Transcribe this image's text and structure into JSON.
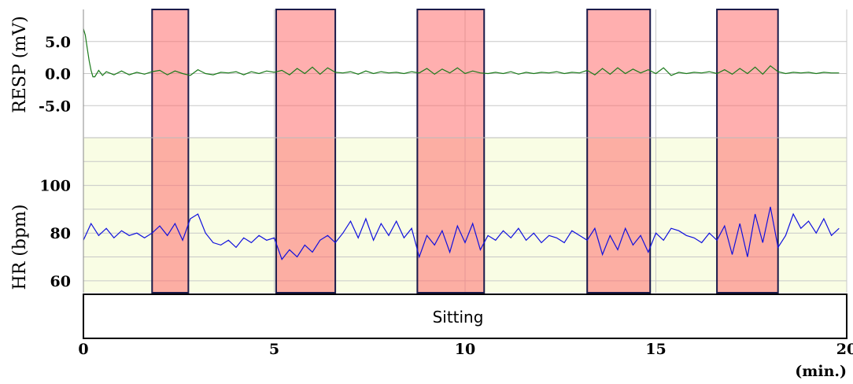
{
  "chart_data": {
    "type": "line",
    "x_axis": {
      "label": "(min.)",
      "range": [
        0,
        20
      ],
      "ticks": [
        0,
        5,
        10,
        15,
        20
      ]
    },
    "stimulus_intervals": [
      [
        1.8,
        2.75
      ],
      [
        5.05,
        6.6
      ],
      [
        8.75,
        10.5
      ],
      [
        13.2,
        14.85
      ],
      [
        16.6,
        18.2
      ]
    ],
    "activity_label": "Sitting",
    "panels": [
      {
        "id": "resp",
        "ylabel": "RESP (mV)",
        "yrange": [
          -10,
          10
        ],
        "ticks": [
          {
            "value": 5,
            "label": "5.0"
          },
          {
            "value": 0,
            "label": "0.0"
          },
          {
            "value": -5,
            "label": "-5.0"
          }
        ],
        "background": "#ffffff",
        "series": [
          {
            "color": "#1a7a1a",
            "x": [
              0,
              0.05,
              0.1,
              0.15,
              0.2,
              0.25,
              0.3,
              0.4,
              0.5,
              0.6,
              0.8,
              1.0,
              1.2,
              1.4,
              1.6,
              1.8,
              2.0,
              2.2,
              2.4,
              2.6,
              2.8,
              3.0,
              3.2,
              3.4,
              3.6,
              3.8,
              4.0,
              4.2,
              4.4,
              4.6,
              4.8,
              5.0,
              5.2,
              5.4,
              5.6,
              5.8,
              6.0,
              6.2,
              6.4,
              6.6,
              6.8,
              7.0,
              7.2,
              7.4,
              7.6,
              7.8,
              8.0,
              8.2,
              8.4,
              8.6,
              8.8,
              9.0,
              9.2,
              9.4,
              9.6,
              9.8,
              10.0,
              10.2,
              10.4,
              10.6,
              10.8,
              11.0,
              11.2,
              11.4,
              11.6,
              11.8,
              12.0,
              12.2,
              12.4,
              12.6,
              12.8,
              13.0,
              13.2,
              13.4,
              13.6,
              13.8,
              14.0,
              14.2,
              14.4,
              14.6,
              14.8,
              15.0,
              15.2,
              15.4,
              15.6,
              15.8,
              16.0,
              16.2,
              16.4,
              16.6,
              16.8,
              17.0,
              17.2,
              17.4,
              17.6,
              17.8,
              18.0,
              18.2,
              18.4,
              18.6,
              18.8,
              19.0,
              19.2,
              19.4,
              19.6,
              19.8
            ],
            "y": [
              7.0,
              6.0,
              4.0,
              2.0,
              0.5,
              -0.5,
              -0.5,
              0.5,
              -0.3,
              0.3,
              -0.2,
              0.4,
              -0.2,
              0.2,
              -0.1,
              0.3,
              0.5,
              -0.2,
              0.4,
              0.0,
              -0.3,
              0.6,
              0.0,
              -0.2,
              0.2,
              0.1,
              0.3,
              -0.2,
              0.3,
              0.0,
              0.4,
              0.2,
              0.5,
              -0.2,
              0.8,
              0.0,
              1.0,
              -0.1,
              0.9,
              0.2,
              0.1,
              0.3,
              -0.1,
              0.4,
              0.0,
              0.3,
              0.1,
              0.2,
              0.0,
              0.3,
              0.1,
              0.8,
              -0.1,
              0.7,
              0.1,
              0.9,
              0.0,
              0.4,
              0.1,
              0.0,
              0.2,
              0.0,
              0.3,
              -0.1,
              0.2,
              0.0,
              0.2,
              0.1,
              0.3,
              0.0,
              0.2,
              0.1,
              0.5,
              -0.2,
              0.8,
              -0.1,
              0.9,
              0.0,
              0.7,
              0.1,
              0.6,
              0.0,
              0.9,
              -0.3,
              0.2,
              0.0,
              0.2,
              0.1,
              0.3,
              0.0,
              0.6,
              -0.1,
              0.8,
              0.0,
              1.0,
              -0.1,
              1.2,
              0.3,
              0.0,
              0.2,
              0.1,
              0.2,
              0.0,
              0.2,
              0.1,
              0.1
            ]
          }
        ]
      },
      {
        "id": "hr",
        "ylabel": "HR (bpm)",
        "yrange": [
          55,
          120
        ],
        "ticks": [
          {
            "value": 100,
            "label": "100"
          },
          {
            "value": 80,
            "label": "80"
          },
          {
            "value": 60,
            "label": "60"
          }
        ],
        "background": "#f9fde4",
        "series": [
          {
            "color": "#1010dd",
            "x": [
              0,
              0.2,
              0.4,
              0.6,
              0.8,
              1.0,
              1.2,
              1.4,
              1.6,
              1.8,
              2.0,
              2.2,
              2.4,
              2.6,
              2.8,
              3.0,
              3.2,
              3.4,
              3.6,
              3.8,
              4.0,
              4.2,
              4.4,
              4.6,
              4.8,
              5.0,
              5.2,
              5.4,
              5.6,
              5.8,
              6.0,
              6.2,
              6.4,
              6.6,
              6.8,
              7.0,
              7.2,
              7.4,
              7.6,
              7.8,
              8.0,
              8.2,
              8.4,
              8.6,
              8.8,
              9.0,
              9.2,
              9.4,
              9.6,
              9.8,
              10.0,
              10.2,
              10.4,
              10.6,
              10.8,
              11.0,
              11.2,
              11.4,
              11.6,
              11.8,
              12.0,
              12.2,
              12.4,
              12.6,
              12.8,
              13.0,
              13.2,
              13.4,
              13.6,
              13.8,
              14.0,
              14.2,
              14.4,
              14.6,
              14.8,
              15.0,
              15.2,
              15.4,
              15.6,
              15.8,
              16.0,
              16.2,
              16.4,
              16.6,
              16.8,
              17.0,
              17.2,
              17.4,
              17.6,
              17.8,
              18.0,
              18.2,
              18.4,
              18.6,
              18.8,
              19.0,
              19.2,
              19.4,
              19.6,
              19.8
            ],
            "y": [
              77,
              84,
              79,
              82,
              78,
              81,
              79,
              80,
              78,
              80,
              83,
              79,
              84,
              77,
              86,
              88,
              80,
              76,
              75,
              77,
              74,
              78,
              76,
              79,
              77,
              78,
              69,
              73,
              70,
              75,
              72,
              77,
              79,
              76,
              80,
              85,
              78,
              86,
              77,
              84,
              79,
              85,
              78,
              82,
              70,
              79,
              75,
              81,
              72,
              83,
              76,
              84,
              73,
              79,
              77,
              81,
              78,
              82,
              77,
              80,
              76,
              79,
              78,
              76,
              81,
              79,
              77,
              82,
              71,
              79,
              73,
              82,
              75,
              79,
              72,
              80,
              77,
              82,
              81,
              79,
              78,
              76,
              80,
              77,
              83,
              71,
              84,
              70,
              88,
              76,
              91,
              74,
              79,
              88,
              82,
              85,
              80,
              86,
              79,
              82
            ]
          }
        ]
      }
    ]
  }
}
